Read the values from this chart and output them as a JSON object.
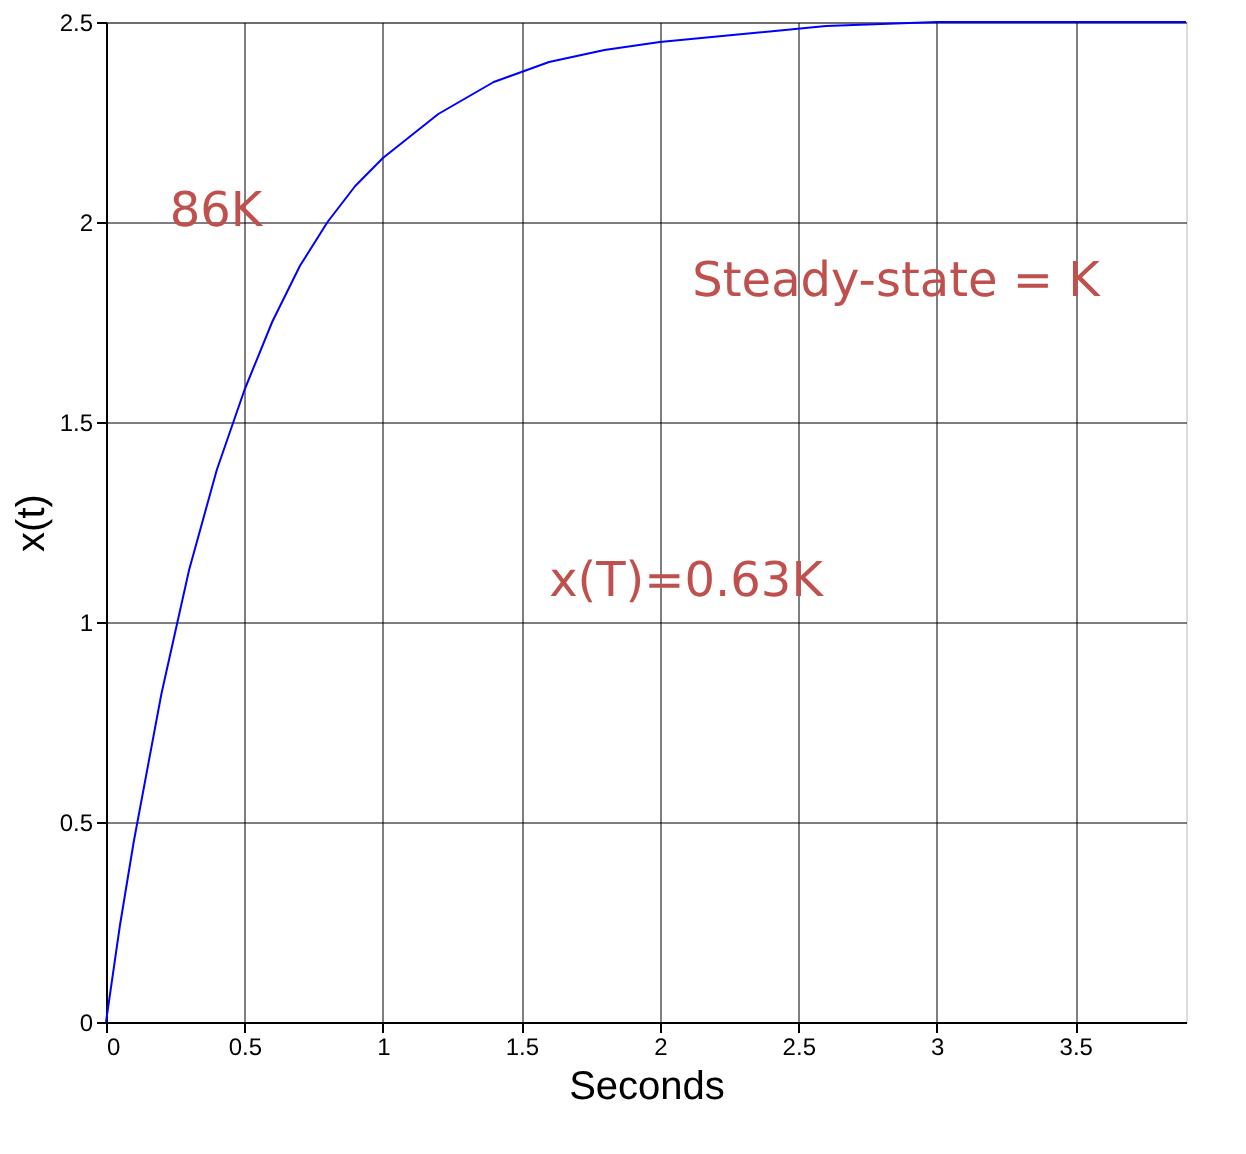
{
  "chart_data": {
    "type": "line",
    "xlabel": "Seconds",
    "ylabel": "x(t)",
    "x": [
      0,
      0.05,
      0.1,
      0.2,
      0.3,
      0.4,
      0.5,
      0.6,
      0.7,
      0.8,
      0.9,
      1.0,
      1.2,
      1.4,
      1.6,
      1.8,
      2.0,
      2.3,
      2.6,
      3.0,
      3.9
    ],
    "series": [
      {
        "color": "#0000ff",
        "values": [
          0,
          0.24,
          0.45,
          0.82,
          1.13,
          1.38,
          1.58,
          1.75,
          1.89,
          2.0,
          2.09,
          2.16,
          2.27,
          2.35,
          2.4,
          2.43,
          2.45,
          2.47,
          2.49,
          2.5,
          2.5
        ]
      }
    ],
    "xlim": [
      0,
      3.9
    ],
    "xticks": [
      0,
      0.5,
      1,
      1.5,
      2,
      2.5,
      3,
      3.5
    ],
    "ylim": [
      0,
      2.5
    ],
    "yticks": [
      0,
      0.5,
      1,
      1.5,
      2,
      2.5
    ],
    "grid": true,
    "line_style": "solid",
    "marker": "none",
    "annotations": [
      "86K",
      "Steady-state = K",
      "x(T)=0.63K"
    ]
  }
}
